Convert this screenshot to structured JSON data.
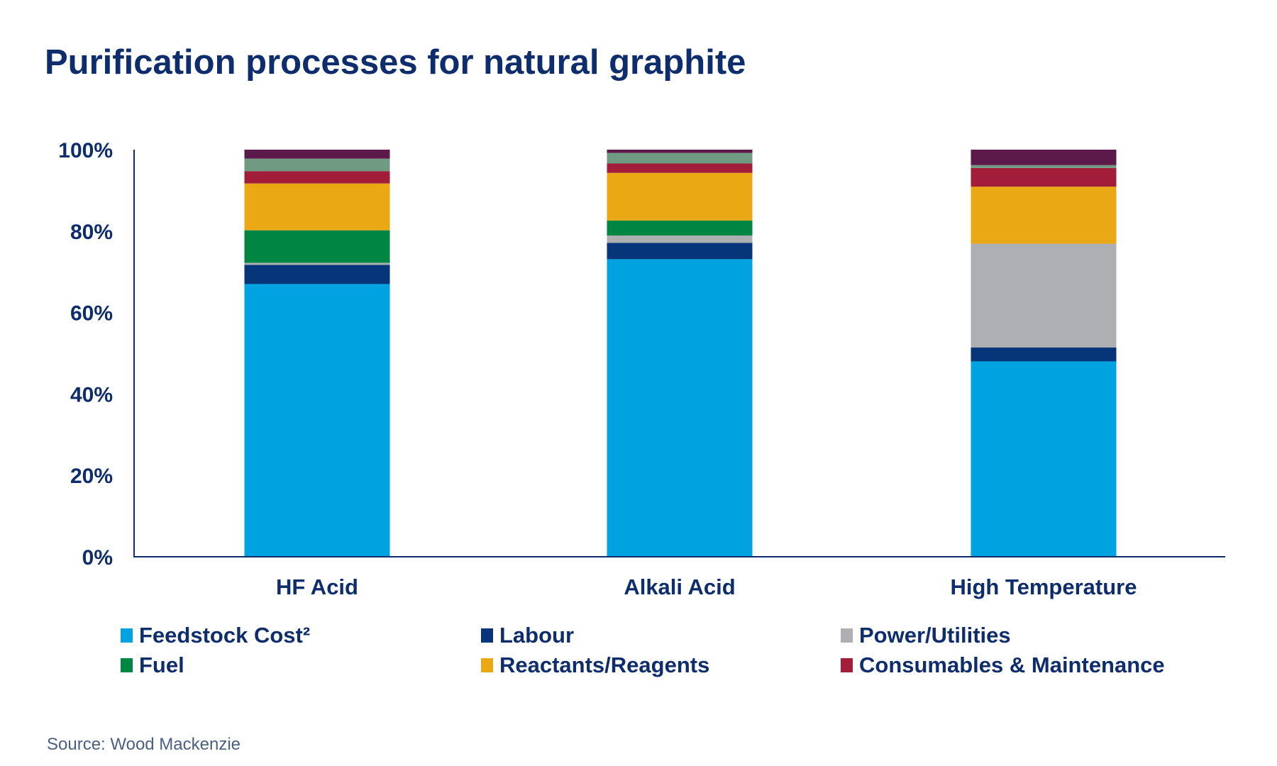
{
  "chart_data": {
    "type": "bar",
    "stacked": true,
    "title": "Purification processes for natural graphite",
    "xlabel": "",
    "ylabel": "",
    "ylim": [
      0,
      100
    ],
    "yticks": [
      "0%",
      "20%",
      "40%",
      "60%",
      "80%",
      "100%"
    ],
    "grid": false,
    "legend_position": "bottom",
    "categories": [
      "HF Acid",
      "Alkali Acid",
      "High Temperature"
    ],
    "series": [
      {
        "name": "Feedstock Cost²",
        "color": "#00a3e0",
        "values": [
          67.0,
          73.1,
          48.0
        ]
      },
      {
        "name": "Labour",
        "color": "#06357a",
        "values": [
          4.7,
          4.0,
          3.4
        ]
      },
      {
        "name": "Power/Utilities",
        "color": "#aeafb2",
        "values": [
          0.5,
          1.8,
          25.5
        ]
      },
      {
        "name": "Fuel",
        "color": "#008542",
        "values": [
          8.0,
          3.7,
          0.0
        ]
      },
      {
        "name": "Reactants/Reagents",
        "color": "#eaa814",
        "values": [
          11.5,
          11.7,
          14.0
        ]
      },
      {
        "name": "Consumables & Maintenance",
        "color": "#a21d39",
        "values": [
          3.0,
          2.3,
          4.6
        ]
      },
      {
        "name": "",
        "color": "#709b82",
        "values": [
          3.1,
          2.6,
          0.7
        ]
      },
      {
        "name": "",
        "color": "#5b1a4a",
        "values": [
          2.2,
          0.8,
          3.8
        ]
      }
    ],
    "source": "Source: Wood Mackenzie"
  }
}
